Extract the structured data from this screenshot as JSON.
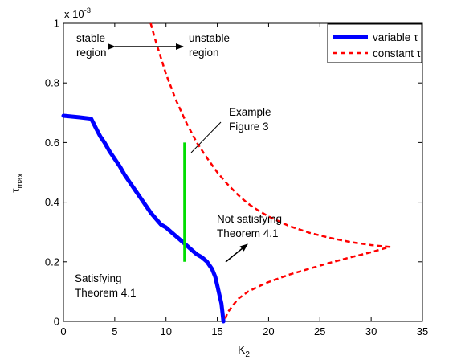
{
  "chart_data": {
    "type": "line",
    "xlabel": "K",
    "xlabel_sub": "2",
    "ylabel": "τ",
    "ylabel_sub": "max",
    "y_exponent_label": "x 10",
    "y_exponent_power": "-3",
    "xlim": [
      0,
      35
    ],
    "ylim": [
      0,
      1
    ],
    "xticks": [
      0,
      5,
      10,
      15,
      20,
      25,
      30,
      35
    ],
    "yticks": [
      0,
      0.2,
      0.4,
      0.6,
      0.8,
      1
    ],
    "xtick_labels": [
      "0",
      "5",
      "10",
      "15",
      "20",
      "25",
      "30",
      "35"
    ],
    "ytick_labels": [
      "0",
      "0.2",
      "0.4",
      "0.6",
      "0.8",
      "1"
    ],
    "grid": false,
    "legend_position": "top-right",
    "series": [
      {
        "name": "variable τ",
        "color": "#0000ff",
        "style": "solid-thick",
        "x": [
          0,
          1.5,
          2.7,
          3.0,
          3.3,
          3.6,
          4.0,
          4.5,
          5.0,
          5.5,
          6.0,
          6.5,
          7.0,
          7.5,
          8.0,
          8.5,
          9.0,
          9.5,
          10.0,
          10.5,
          11.0,
          11.5,
          12.0,
          12.5,
          13.0,
          13.5,
          14.0,
          14.5,
          14.8,
          15.0,
          15.2,
          15.4,
          15.5,
          15.6
        ],
        "y": [
          0.69,
          0.685,
          0.68,
          0.66,
          0.64,
          0.62,
          0.6,
          0.57,
          0.545,
          0.52,
          0.49,
          0.465,
          0.44,
          0.415,
          0.39,
          0.365,
          0.345,
          0.325,
          0.315,
          0.3,
          0.285,
          0.27,
          0.255,
          0.24,
          0.225,
          0.215,
          0.2,
          0.175,
          0.15,
          0.12,
          0.09,
          0.06,
          0.03,
          0.0
        ]
      },
      {
        "name": "constant τ",
        "color": "#ff0000",
        "style": "dashed",
        "x": [
          8.5,
          9.0,
          10.0,
          11.0,
          12.0,
          13.0,
          14.0,
          15.0,
          16.0,
          17.0,
          18.0,
          19.0,
          20.0,
          22.0,
          24.0,
          26.0,
          28.0,
          30.0,
          31.8,
          30.0,
          28.0,
          26.0,
          24.0,
          22.0,
          20.0,
          19.0,
          18.0,
          17.0,
          16.0,
          15.7
        ],
        "y": [
          1.0,
          0.94,
          0.83,
          0.74,
          0.665,
          0.6,
          0.548,
          0.5,
          0.46,
          0.425,
          0.395,
          0.372,
          0.352,
          0.32,
          0.297,
          0.28,
          0.266,
          0.256,
          0.25,
          0.232,
          0.215,
          0.197,
          0.177,
          0.157,
          0.132,
          0.117,
          0.1,
          0.075,
          0.03,
          0.0
        ]
      }
    ],
    "markers": [
      {
        "kind": "vertical-segment",
        "color": "#00dd00",
        "x": 11.8,
        "y1": 0.2,
        "y2": 0.6
      }
    ],
    "annotations": {
      "stable": [
        "stable",
        "region"
      ],
      "unstable": [
        "unstable",
        "region"
      ],
      "example": [
        "Example",
        "Figure 3"
      ],
      "not_satisfying": [
        "Not satisfying",
        "Theorem 4.1"
      ],
      "satisfying": [
        "Satisfying",
        "Theorem 4.1"
      ]
    }
  }
}
